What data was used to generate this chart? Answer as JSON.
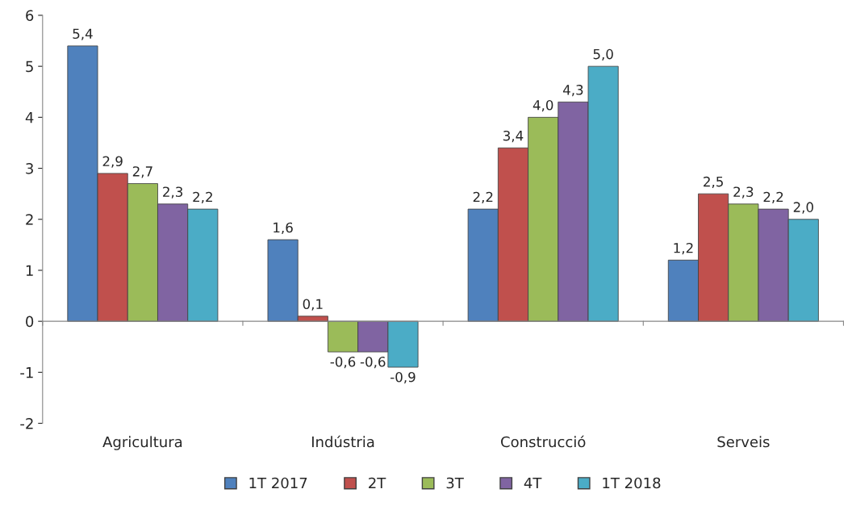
{
  "chart_data": {
    "type": "bar",
    "categories": [
      "Agricultura",
      "Indústria",
      "Construcció",
      "Serveis"
    ],
    "series": [
      {
        "name": "1T 2017",
        "color": "#4f81bd",
        "values": [
          5.4,
          1.6,
          2.2,
          1.2
        ],
        "value_labels": [
          "5,4",
          "1,6",
          "2,2",
          "1,2"
        ]
      },
      {
        "name": "2T",
        "color": "#c0504d",
        "values": [
          2.9,
          0.1,
          3.4,
          2.5
        ],
        "value_labels": [
          "2,9",
          "0,1",
          "3,4",
          "2,5"
        ]
      },
      {
        "name": "3T",
        "color": "#9bbb59",
        "values": [
          2.7,
          -0.6,
          4.0,
          2.3
        ],
        "value_labels": [
          "2,7",
          "-0,6",
          "4,0",
          "2,3"
        ]
      },
      {
        "name": "4T",
        "color": "#8064a2",
        "values": [
          2.3,
          -0.6,
          4.3,
          2.2
        ],
        "value_labels": [
          "2,3",
          "-0,6",
          "4,3",
          "2,2"
        ]
      },
      {
        "name": "1T 2018",
        "color": "#4bacc6",
        "values": [
          2.2,
          -0.9,
          5.0,
          2.0
        ],
        "value_labels": [
          "2,2",
          "-0,9",
          "5,0",
          "2,0"
        ]
      }
    ],
    "ylim": [
      -2,
      6
    ],
    "yticks": [
      -2,
      -1,
      0,
      1,
      2,
      3,
      4,
      5,
      6
    ],
    "legend": "bottom"
  }
}
